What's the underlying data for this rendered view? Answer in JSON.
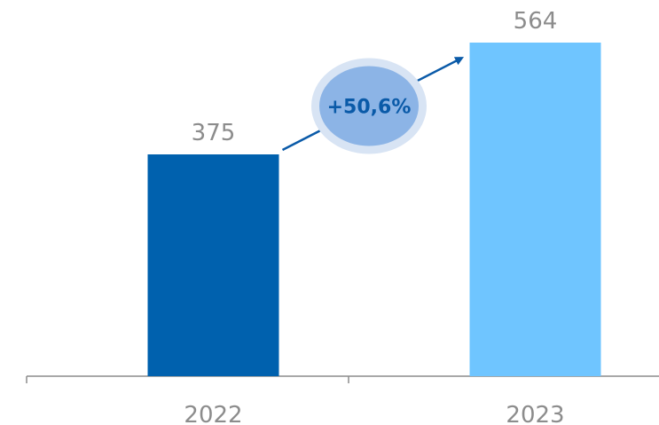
{
  "chart_data": {
    "type": "bar",
    "categories": [
      "2022",
      "2023"
    ],
    "values": [
      375,
      564
    ],
    "value_labels": [
      "375",
      "564"
    ],
    "colors": [
      "#0061ae",
      "#6fc5ff"
    ],
    "ylim": [
      0,
      600
    ],
    "grid": false,
    "legend": "none",
    "annotation": {
      "text": "+50,6%",
      "type": "growth-arrow",
      "text_color": "#0a5aa8",
      "bubble_color": "#8cb4e6",
      "halo_color": "#d8e4f4",
      "arrow_color": "#0a5aa8"
    },
    "axis_color": "#8c8c8c"
  }
}
